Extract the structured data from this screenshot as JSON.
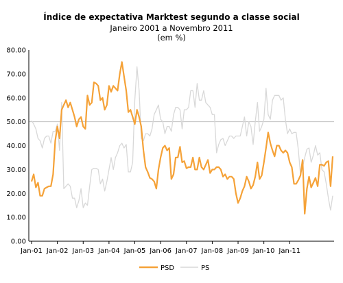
{
  "chart_data": {
    "type": "line",
    "title": "Índice de expectativa Marktest segundo a classe social",
    "subtitle": "Janeiro 2001 a Novembro 2011",
    "unit_note": "(em %)",
    "ylim": [
      0,
      80
    ],
    "y_ticks": [
      "0.00",
      "10.00",
      "20.00",
      "30.00",
      "40.00",
      "50.00",
      "60.00",
      "70.00",
      "80.00"
    ],
    "x_ticks": [
      "Jan-01",
      "Jan-02",
      "Jan-03",
      "Jan-04",
      "Jan-05",
      "Jan-06",
      "Jan-07",
      "Jan-08",
      "Jan-09",
      "Jan-10",
      "Jan-11"
    ],
    "reference_line": 50,
    "legend_position": "bottom",
    "colors": {
      "PSD": "#f5a238",
      "PS": "#d8d8d8",
      "reference": "#bfbfbf",
      "axis": "#000000"
    },
    "series": [
      {
        "name": "PSD",
        "values": [
          25,
          28,
          22.5,
          24.5,
          19,
          19,
          22,
          22.5,
          23,
          23,
          28,
          42,
          48,
          43,
          55,
          57,
          59,
          56,
          58,
          55,
          52,
          48,
          51,
          52,
          48,
          47,
          61,
          57,
          58,
          66.5,
          66,
          65,
          59,
          60,
          55,
          57,
          65,
          62.5,
          65,
          64,
          63,
          70,
          75,
          69,
          63,
          54,
          55,
          52,
          49,
          55,
          52,
          48,
          38,
          31,
          29,
          26.5,
          26,
          25,
          22,
          30,
          35,
          39,
          40,
          38,
          39,
          26,
          28,
          35,
          35,
          39.5,
          33,
          33.5,
          30.5,
          31,
          31,
          35,
          30,
          30,
          35,
          31,
          30,
          32,
          34,
          28.5,
          30,
          30,
          31,
          31,
          30,
          27,
          28,
          26,
          27,
          27,
          26,
          20,
          16,
          18,
          21,
          23,
          27,
          25,
          22,
          23.5,
          27,
          33,
          26,
          27.5,
          33,
          39,
          45.5,
          41,
          38,
          35.5,
          40,
          40,
          38,
          37,
          38,
          37,
          33,
          31,
          24,
          24,
          25.5,
          27.5,
          34,
          11.5,
          22,
          27,
          22.5,
          24.5,
          26.5,
          23,
          32,
          32,
          31.5,
          33,
          33.5,
          23,
          35.5
        ]
      },
      {
        "name": "PS",
        "values": [
          50.5,
          49,
          47,
          43,
          42,
          39,
          43,
          44,
          44,
          41,
          46,
          46,
          49,
          38,
          58,
          22,
          23,
          24,
          23,
          18,
          18,
          14,
          17,
          22,
          14,
          16,
          15,
          23,
          30,
          30.5,
          30.5,
          30,
          24,
          26,
          21,
          25,
          30,
          35,
          30,
          35,
          37,
          40,
          41,
          39,
          40.5,
          29,
          29,
          33,
          59,
          73,
          63,
          43,
          42,
          45,
          45,
          44,
          47,
          53,
          55,
          57,
          51,
          50,
          45,
          48,
          48,
          46,
          53,
          56,
          56,
          55,
          47,
          55,
          55,
          56,
          63,
          63,
          56,
          66,
          59,
          59,
          63,
          58,
          57,
          56,
          53,
          53,
          37,
          40.5,
          42.5,
          43,
          40,
          42,
          44,
          44,
          43,
          44,
          44,
          44,
          48,
          52,
          44,
          50,
          48,
          40.5,
          50,
          58,
          46,
          48,
          51,
          64,
          53,
          51,
          59,
          61,
          61,
          61,
          59,
          60,
          51,
          45,
          47,
          45,
          45.5,
          45.5,
          38.5,
          28,
          31,
          35,
          38.5,
          39,
          33,
          36,
          40,
          36,
          37,
          30,
          29,
          24,
          18,
          13,
          19
        ]
      }
    ]
  }
}
